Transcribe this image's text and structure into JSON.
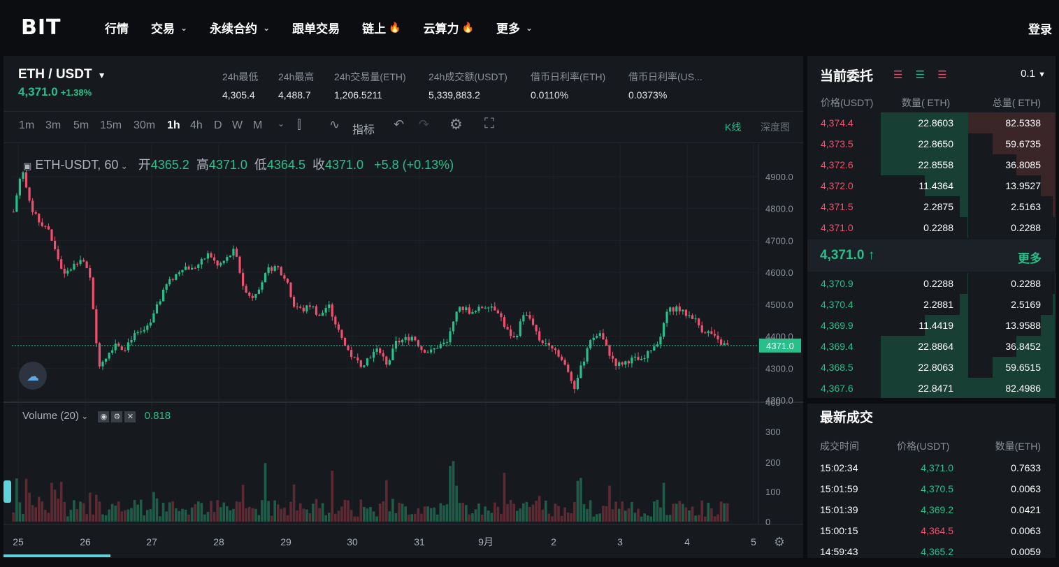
{
  "brand": "BIT",
  "nav": [
    {
      "label": "行情",
      "chevron": false,
      "fire": false
    },
    {
      "label": "交易",
      "chevron": true,
      "fire": false
    },
    {
      "label": "永续合约",
      "chevron": true,
      "fire": false
    },
    {
      "label": "跟单交易",
      "chevron": false,
      "fire": false
    },
    {
      "label": "链上",
      "chevron": false,
      "fire": true
    },
    {
      "label": "云算力",
      "chevron": false,
      "fire": true
    },
    {
      "label": "更多",
      "chevron": true,
      "fire": false
    }
  ],
  "login": "登录",
  "ticker": {
    "pair": "ETH / USDT",
    "price": "4,371.0",
    "change": "+1.38%",
    "stats": [
      {
        "label": "24h最低",
        "value": "4,305.4"
      },
      {
        "label": "24h最高",
        "value": "4,488.7"
      },
      {
        "label": "24h交易量(ETH)",
        "value": "1,206.5211"
      },
      {
        "label": "24h成交额(USDT)",
        "value": "5,339,883.2"
      },
      {
        "label": "借币日利率(ETH)",
        "value": "0.0110%"
      },
      {
        "label": "借币日利率(US...",
        "value": "0.0373%"
      }
    ]
  },
  "toolbar": {
    "timeframes": [
      "1m",
      "3m",
      "5m",
      "15m",
      "30m",
      "1h",
      "4h",
      "D",
      "W",
      "M"
    ],
    "active_timeframe": "1h",
    "indicators_label": "指标",
    "kline_tab": "K线",
    "depth_tab": "深度图"
  },
  "legend": {
    "symbol": "ETH-USDT, 60",
    "open_label": "开",
    "open": "4365.2",
    "high_label": "高",
    "high": "4371.0",
    "low_label": "低",
    "low": "4364.5",
    "close_label": "收",
    "close": "4371.0",
    "change": "+5.8 (+0.13%)"
  },
  "volume_legend": {
    "label": "Volume (20)",
    "value": "0.818"
  },
  "chart_data": {
    "type": "candlestick",
    "price_axis": [
      "4900.0",
      "4800.0",
      "4700.0",
      "4600.0",
      "4500.0",
      "4400.0",
      "4300.0",
      "4200.0"
    ],
    "volume_axis": [
      "400",
      "300",
      "200",
      "100",
      "0"
    ],
    "x_labels": [
      "25",
      "26",
      "27",
      "28",
      "29",
      "30",
      "31",
      "9月",
      "2",
      "3",
      "4",
      "5"
    ],
    "last_price_label": "4371.0",
    "ylim": [
      4200,
      4900
    ],
    "path": [
      4790,
      4930,
      4800,
      4760,
      4740,
      4660,
      4590,
      4620,
      4650,
      4580,
      4310,
      4340,
      4380,
      4360,
      4400,
      4410,
      4430,
      4500,
      4560,
      4590,
      4620,
      4610,
      4630,
      4660,
      4620,
      4640,
      4670,
      4560,
      4520,
      4560,
      4610,
      4620,
      4580,
      4500,
      4480,
      4500,
      4460,
      4500,
      4430,
      4370,
      4330,
      4310,
      4340,
      4360,
      4310,
      4380,
      4390,
      4400,
      4360,
      4350,
      4370,
      4380,
      4480,
      4490,
      4470,
      4490,
      4500,
      4480,
      4420,
      4390,
      4470,
      4450,
      4380,
      4380,
      4350,
      4300,
      4240,
      4320,
      4390,
      4410,
      4350,
      4310,
      4320,
      4330,
      4320,
      4360,
      4390,
      4480,
      4490,
      4470,
      4460,
      4420,
      4410,
      4380,
      4371
    ]
  },
  "orderbook": {
    "title": "当前委托",
    "precision": "0.1",
    "headers": [
      "价格(USDT)",
      "数量( ETH)",
      "总量( ETH)"
    ],
    "asks": [
      {
        "price": "4,374.4",
        "qty": "22.8603",
        "total": "82.5338",
        "qfill": 1.0,
        "tfill": 1.0
      },
      {
        "price": "4,373.5",
        "qty": "22.8650",
        "total": "59.6735",
        "qfill": 1.0,
        "tfill": 0.72
      },
      {
        "price": "4,372.6",
        "qty": "22.8558",
        "total": "36.8085",
        "qfill": 1.0,
        "tfill": 0.45
      },
      {
        "price": "4,372.0",
        "qty": "11.4364",
        "total": "13.9527",
        "qfill": 0.5,
        "tfill": 0.17
      },
      {
        "price": "4,371.5",
        "qty": "2.2875",
        "total": "2.5163",
        "qfill": 0.1,
        "tfill": 0.03
      },
      {
        "price": "4,371.0",
        "qty": "0.2288",
        "total": "0.2288",
        "qfill": 0.01,
        "tfill": 0.01
      }
    ],
    "mid_price": "4,371.0",
    "mid_arrow": "↑",
    "more": "更多",
    "bids": [
      {
        "price": "4,370.9",
        "qty": "0.2288",
        "total": "0.2288",
        "qfill": 0.01,
        "tfill": 0.01
      },
      {
        "price": "4,370.4",
        "qty": "2.2881",
        "total": "2.5169",
        "qfill": 0.1,
        "tfill": 0.03
      },
      {
        "price": "4,369.9",
        "qty": "11.4419",
        "total": "13.9588",
        "qfill": 0.5,
        "tfill": 0.17
      },
      {
        "price": "4,369.4",
        "qty": "22.8864",
        "total": "36.8452",
        "qfill": 1.0,
        "tfill": 0.45
      },
      {
        "price": "4,368.5",
        "qty": "22.8063",
        "total": "59.6515",
        "qfill": 1.0,
        "tfill": 0.72
      },
      {
        "price": "4,367.6",
        "qty": "22.8471",
        "total": "82.4986",
        "qfill": 1.0,
        "tfill": 1.0
      }
    ]
  },
  "trades": {
    "title": "最新成交",
    "headers": [
      "成交时间",
      "价格(USDT)",
      "数量(ETH)"
    ],
    "rows": [
      {
        "time": "15:02:34",
        "price": "4,371.0",
        "qty": "0.7633",
        "side": "buy"
      },
      {
        "time": "15:01:59",
        "price": "4,370.5",
        "qty": "0.0063",
        "side": "buy"
      },
      {
        "time": "15:01:39",
        "price": "4,369.2",
        "qty": "0.0421",
        "side": "buy"
      },
      {
        "time": "15:00:15",
        "price": "4,364.5",
        "qty": "0.0063",
        "side": "sell"
      },
      {
        "time": "14:59:43",
        "price": "4,365.2",
        "qty": "0.0059",
        "side": "buy"
      }
    ]
  },
  "colors": {
    "up": "#27c08a",
    "down": "#f0506e",
    "up_bar": "#1f5c47",
    "down_bar": "#5c2a33"
  }
}
